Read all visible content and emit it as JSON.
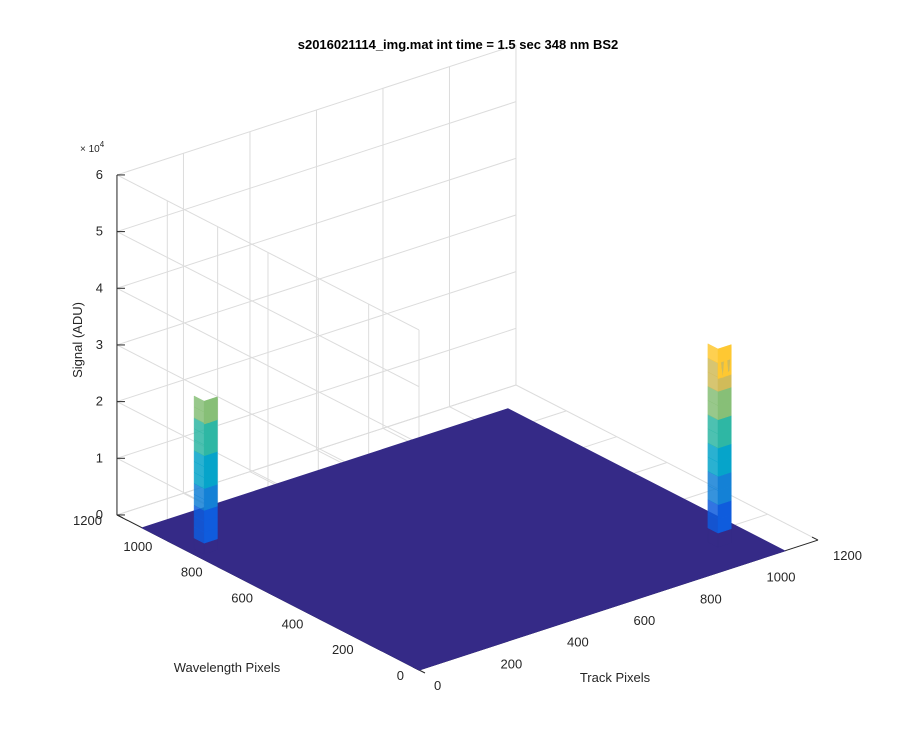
{
  "figure": {
    "title": "s2016021114_img.mat int time = 1.5 sec  348 nm BS2"
  },
  "chart_data": {
    "type": "surface",
    "title": "s2016021114_img.mat int time = 1.5 sec  348 nm BS2",
    "xlabel": "Track Pixels",
    "ylabel": "Wavelength Pixels",
    "zlabel": "Signal (ADU)",
    "xlim": [
      0,
      1200
    ],
    "ylim": [
      0,
      1200
    ],
    "zlim": [
      0,
      60000
    ],
    "x_ticks": [
      "0",
      "200",
      "400",
      "600",
      "800",
      "1000",
      "1200"
    ],
    "y_ticks": [
      "0",
      "200",
      "400",
      "600",
      "800",
      "1000",
      "1200"
    ],
    "z_ticks": [
      "0",
      "1",
      "2",
      "3",
      "4",
      "5",
      "6"
    ],
    "z_exponent": "× 10",
    "z_exponent_power": "4",
    "grid": true,
    "view": "isometric",
    "surface_base": {
      "x_range": [
        0,
        1100
      ],
      "y_range": [
        0,
        1100
      ],
      "z": 0,
      "color": "#352a87"
    },
    "peaks": [
      {
        "name": "peak-1",
        "x_center": 40,
        "y_center": 900,
        "x_width": 40,
        "y_width": 40,
        "z_max": 27000
      },
      {
        "name": "peak-2",
        "x_center": 1010,
        "y_center": 140,
        "x_width": 40,
        "y_width": 40,
        "z_max": 35000
      }
    ],
    "colormap": [
      "#352a87",
      "#0f5cdd",
      "#1481d6",
      "#06a4ca",
      "#2eb7a4",
      "#87bf77",
      "#d1bb59",
      "#fec832",
      "#f9fb0e"
    ]
  }
}
